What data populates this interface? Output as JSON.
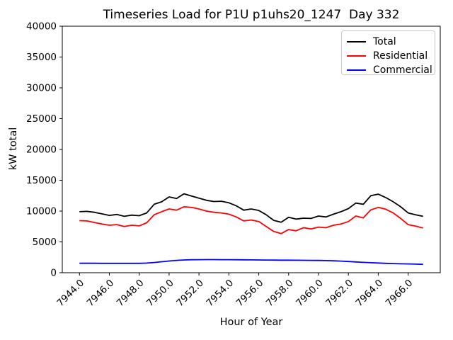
{
  "chart_data": {
    "type": "line",
    "title": "Timeseries Load for P1U p1uhs20_1247  Day 332",
    "xlabel": "Hour of Year",
    "ylabel": "kW total",
    "xlim": [
      7942.85,
      7968.15
    ],
    "ylim": [
      0,
      40000
    ],
    "grid": false,
    "legend_position": "upper right",
    "x_ticks": [
      7944,
      7946,
      7948,
      7950,
      7952,
      7954,
      7956,
      7958,
      7960,
      7962,
      7964,
      7966
    ],
    "x_tick_labels": [
      "7944.0",
      "7946.0",
      "7948.0",
      "7950.0",
      "7952.0",
      "7954.0",
      "7956.0",
      "7958.0",
      "7960.0",
      "7962.0",
      "7964.0",
      "7966.0"
    ],
    "x_tick_rotation": 45,
    "y_ticks": [
      0,
      5000,
      10000,
      15000,
      20000,
      25000,
      30000,
      35000,
      40000
    ],
    "y_tick_labels": [
      "0",
      "5000",
      "10000",
      "15000",
      "20000",
      "25000",
      "30000",
      "35000",
      "40000"
    ],
    "x_start": 7944.0,
    "x_step": 0.5,
    "series": [
      {
        "name": "Total",
        "color": "#000000",
        "values": [
          9900,
          9950,
          9800,
          9550,
          9300,
          9450,
          9150,
          9350,
          9250,
          9700,
          11100,
          11500,
          12300,
          12050,
          12800,
          12450,
          12100,
          11750,
          11550,
          11600,
          11350,
          10850,
          10150,
          10350,
          10100,
          9400,
          8500,
          8200,
          9000,
          8700,
          8850,
          8800,
          9200,
          9050,
          9500,
          9900,
          10400,
          11300,
          11100,
          12500,
          12750,
          12200,
          11500,
          10700,
          9700,
          9400,
          9150
        ]
      },
      {
        "name": "Residential",
        "color": "#ff0000",
        "values": [
          8450,
          8400,
          8150,
          7900,
          7700,
          7800,
          7500,
          7700,
          7600,
          8100,
          9400,
          9900,
          10350,
          10150,
          10700,
          10600,
          10350,
          10000,
          9800,
          9700,
          9500,
          9050,
          8400,
          8550,
          8300,
          7500,
          6700,
          6350,
          7000,
          6800,
          7300,
          7100,
          7400,
          7300,
          7700,
          7900,
          8300,
          9200,
          8900,
          10200,
          10600,
          10300,
          9700,
          8800,
          7800,
          7550,
          7250
        ]
      },
      {
        "name": "Commercial",
        "color": "#0000ff",
        "values": [
          1530,
          1530,
          1525,
          1520,
          1520,
          1520,
          1515,
          1515,
          1520,
          1560,
          1650,
          1780,
          1900,
          2000,
          2070,
          2100,
          2120,
          2130,
          2130,
          2120,
          2110,
          2100,
          2090,
          2080,
          2070,
          2060,
          2050,
          2040,
          2030,
          2020,
          2010,
          2000,
          1990,
          1960,
          1930,
          1880,
          1820,
          1750,
          1680,
          1620,
          1570,
          1520,
          1480,
          1450,
          1420,
          1390,
          1360
        ]
      }
    ]
  }
}
